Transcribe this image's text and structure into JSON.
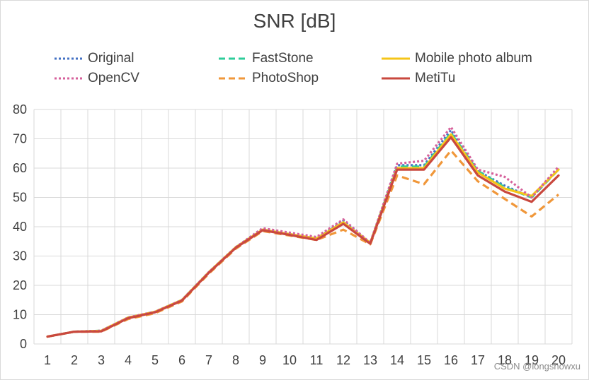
{
  "chart_data": {
    "type": "line",
    "title": "SNR [dB]",
    "xlabel": "",
    "ylabel": "",
    "ylim": [
      0,
      80
    ],
    "yticks": [
      0,
      10,
      20,
      30,
      40,
      50,
      60,
      70,
      80
    ],
    "categories": [
      "1",
      "2",
      "3",
      "4",
      "5",
      "6",
      "7",
      "8",
      "9",
      "10",
      "11",
      "12",
      "13",
      "14",
      "15",
      "16",
      "17",
      "18",
      "19",
      "20"
    ],
    "grid": true,
    "legend_position": "top",
    "series": [
      {
        "name": "Original",
        "color": "#4472C4",
        "dash": "dotted",
        "values": [
          2.5,
          4.2,
          4.5,
          9.0,
          11.0,
          15.0,
          24.5,
          33.0,
          39.5,
          37.5,
          36.0,
          42.0,
          34.5,
          61.0,
          61.0,
          73.0,
          59.0,
          54.0,
          50.0,
          60.0
        ]
      },
      {
        "name": "FastStone",
        "color": "#2ECC9A",
        "dash": "dashed",
        "values": [
          2.5,
          4.2,
          4.5,
          9.0,
          11.0,
          15.0,
          24.5,
          33.0,
          39.0,
          37.5,
          36.0,
          41.5,
          34.5,
          60.5,
          60.5,
          72.0,
          59.0,
          53.5,
          50.0,
          59.5
        ]
      },
      {
        "name": "Mobile photo album",
        "color": "#F5C518",
        "dash": "solid",
        "values": [
          2.5,
          4.2,
          4.5,
          9.0,
          11.0,
          15.0,
          24.5,
          33.0,
          39.0,
          37.5,
          36.0,
          41.5,
          34.5,
          60.0,
          60.0,
          71.5,
          58.5,
          53.0,
          50.5,
          59.5
        ]
      },
      {
        "name": "OpenCV",
        "color": "#D6619B",
        "dash": "dotted",
        "values": [
          2.5,
          4.2,
          4.5,
          9.0,
          11.0,
          15.0,
          24.5,
          33.0,
          39.5,
          38.0,
          36.5,
          42.5,
          34.5,
          61.5,
          62.5,
          74.0,
          59.5,
          57.0,
          50.0,
          60.5
        ]
      },
      {
        "name": "PhotoShop",
        "color": "#F0973A",
        "dash": "dashed",
        "values": [
          2.5,
          4.2,
          4.2,
          8.5,
          10.5,
          14.5,
          24.0,
          32.5,
          38.5,
          37.0,
          35.5,
          39.0,
          34.0,
          57.5,
          54.5,
          66.0,
          55.5,
          49.5,
          43.5,
          51.0
        ]
      },
      {
        "name": "MetiTu",
        "color": "#C9483E",
        "dash": "solid",
        "values": [
          2.5,
          4.2,
          4.3,
          8.8,
          10.8,
          14.8,
          24.3,
          32.8,
          38.8,
          37.2,
          35.5,
          41.0,
          34.2,
          59.5,
          59.5,
          70.5,
          57.5,
          52.0,
          48.5,
          57.5
        ]
      }
    ]
  },
  "watermark": "CSDN @longshowxu"
}
